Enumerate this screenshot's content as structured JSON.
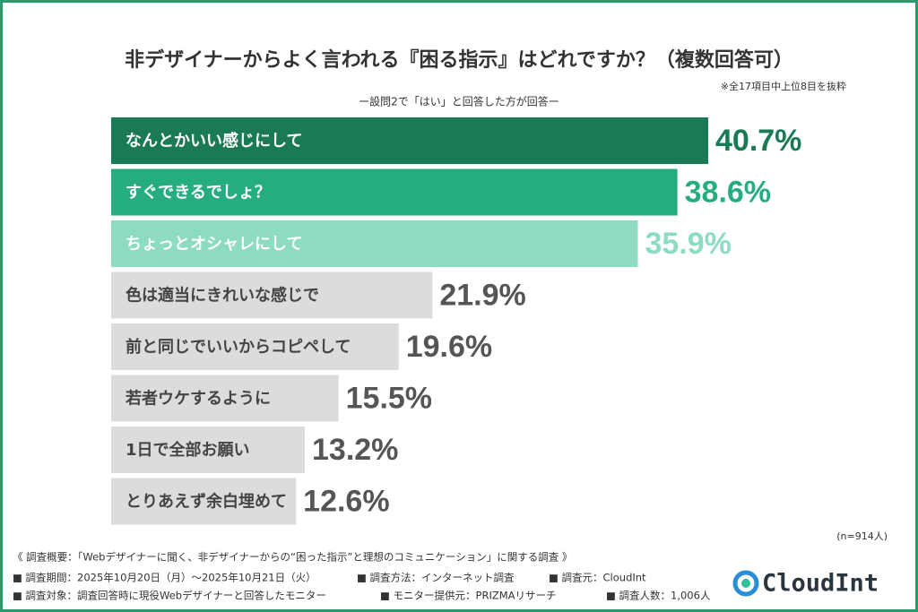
{
  "chart_data": {
    "type": "bar",
    "orientation": "horizontal",
    "title": "非デザイナーからよく言われる『困る指示』はどれですか？（複数回答可）",
    "note": "※全17項目中上位8目を抜粋",
    "subtitle": "ー設問2で「はい」と回答した方が回答ー",
    "sample_size": "(n=914人)",
    "categories": [
      "なんとかいい感じにして",
      "すぐできるでしょ？",
      "ちょっとオシャレにして",
      "色は適当にきれいな感じで",
      "前と同じでいいからコピペして",
      "若者ウケするように",
      "1日で全部お願い",
      "とりあえず余白埋めて"
    ],
    "values": [
      40.7,
      38.6,
      35.9,
      21.9,
      19.6,
      15.5,
      13.2,
      12.6
    ],
    "value_labels": [
      "40.7%",
      "38.6%",
      "35.9%",
      "21.9%",
      "19.6%",
      "15.5%",
      "13.2%",
      "12.6%"
    ],
    "colors": [
      "#1b7a56",
      "#25ad80",
      "#8edcbf",
      "#dcdcdc",
      "#dcdcdc",
      "#dcdcdc",
      "#dcdcdc",
      "#dcdcdc"
    ],
    "category_label_colors": [
      "#ffffff",
      "#ffffff",
      "#ffffff",
      "#444444",
      "#444444",
      "#444444",
      "#444444",
      "#444444"
    ],
    "value_label_colors": [
      "#1b7a56",
      "#25ad80",
      "#8edcbf",
      "#555555",
      "#555555",
      "#555555",
      "#555555",
      "#555555"
    ]
  },
  "footer": {
    "summary": "《 調査概要：「Webデザイナーに聞く、非デザイナーからの“困った指示”と理想のコミュニケーション」に関する調査 》",
    "rows": [
      [
        "■ 調査期間：2025年10月20日（月）～2025年10月21日（火）",
        "■ 調査方法：インターネット調査",
        "■ 調査元：CloudInt"
      ],
      [
        "■ 調査対象：調査回答時に現役Webデザイナーと回答したモニター",
        "■ モニター提供元：PRIZMAリサーチ",
        "■ 調査人数：1,006人"
      ]
    ],
    "logo": "CloudInt"
  }
}
